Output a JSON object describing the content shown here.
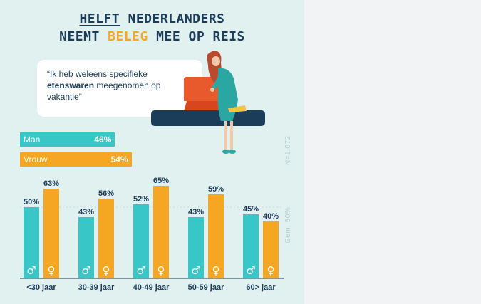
{
  "title": {
    "line1_highlight": "HELFT",
    "line1_rest": " NEDERLANDERS",
    "line2_start": "NEEMT ",
    "line2_highlight": "BELEG",
    "line2_end": " MEE OP REIS"
  },
  "quote": {
    "part1": "“Ik heb weleens specifieke ",
    "bold": "etenswaren",
    "part2": " meegenomen op vakantie”"
  },
  "gender_totals": [
    {
      "label": "Man",
      "value": 46,
      "value_label": "46%",
      "color": "#38c6c6"
    },
    {
      "label": "Vrouw",
      "value": 54,
      "value_label": "54%",
      "color": "#f5a623"
    }
  ],
  "side_notes": {
    "sample": "N=1.072",
    "average": "Gem. 50%"
  },
  "colors": {
    "man": "#38c6c6",
    "vrouw": "#f5a623",
    "navy": "#1b3d5a",
    "background": "#e1f1f0"
  },
  "icons": {
    "man": "male-symbol-icon",
    "vrouw": "female-symbol-icon"
  },
  "chart_data": {
    "type": "bar",
    "title": "",
    "categories": [
      "<30 jaar",
      "30-39 jaar",
      "40-49 jaar",
      "50-59 jaar",
      "60> jaar"
    ],
    "series": [
      {
        "name": "Man",
        "values": [
          50,
          43,
          52,
          43,
          45
        ],
        "labels": [
          "50%",
          "43%",
          "52%",
          "43%",
          "45%"
        ]
      },
      {
        "name": "Vrouw",
        "values": [
          63,
          56,
          65,
          59,
          40
        ],
        "labels": [
          "63%",
          "56%",
          "65%",
          "59%",
          "40%"
        ]
      }
    ],
    "average_line": 50,
    "ylim": [
      0,
      70
    ],
    "grid": false,
    "xlabel": "",
    "ylabel": ""
  }
}
